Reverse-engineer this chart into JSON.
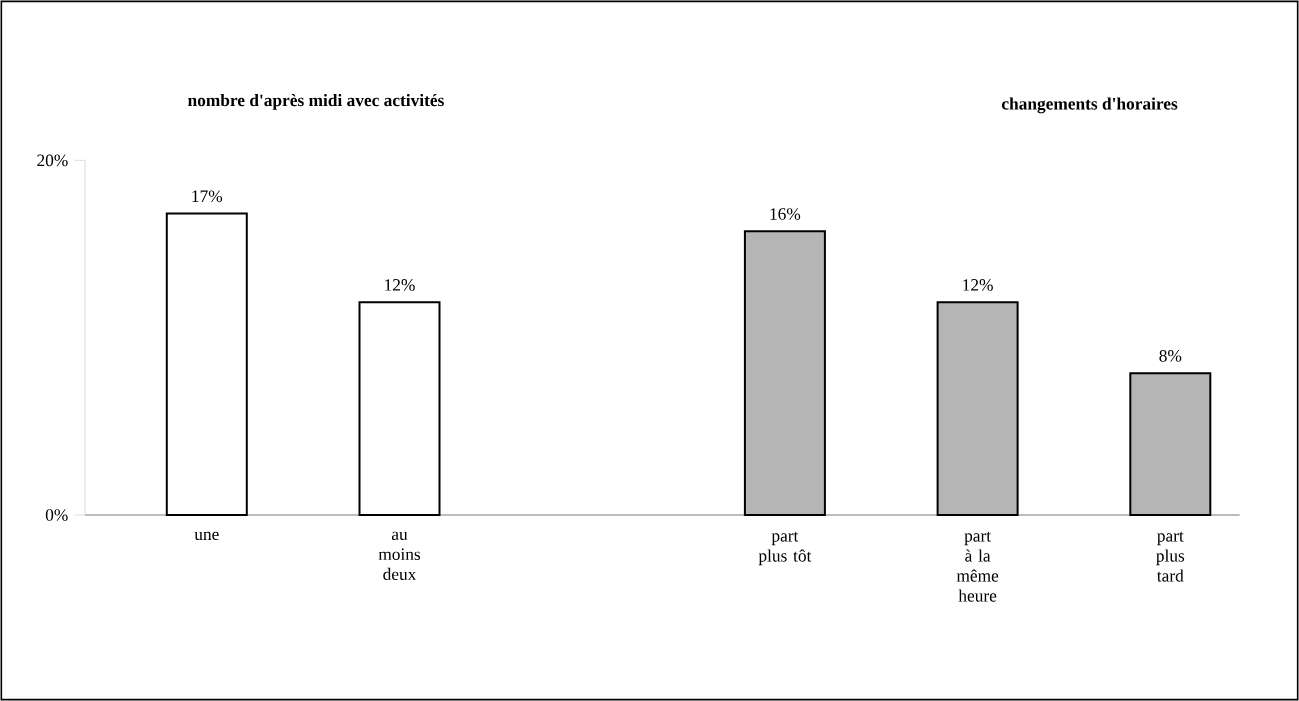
{
  "chart_data": {
    "type": "bar",
    "categories": [
      "une",
      "au moins deux",
      null,
      "part plus tôt",
      "part à la même heure",
      "part plus tard"
    ],
    "series": [
      {
        "color": "#ffffff",
        "values": [
          17,
          12,
          null,
          null,
          null,
          null
        ],
        "value_labels": [
          "17%",
          "12%",
          null,
          null,
          null,
          null
        ]
      },
      {
        "color": "#b5b5b5",
        "values": [
          null,
          null,
          null,
          16,
          12,
          8
        ],
        "value_labels": [
          null,
          null,
          null,
          "16%",
          "12%",
          "8%"
        ]
      }
    ],
    "ylim": [
      0,
      20
    ],
    "yticks": [
      {
        "value": 0,
        "label": "0%"
      },
      {
        "value": 20,
        "label": "20%"
      }
    ],
    "annotations": [
      "nombre d'après midi avec activités",
      "changements d'horaires"
    ]
  }
}
